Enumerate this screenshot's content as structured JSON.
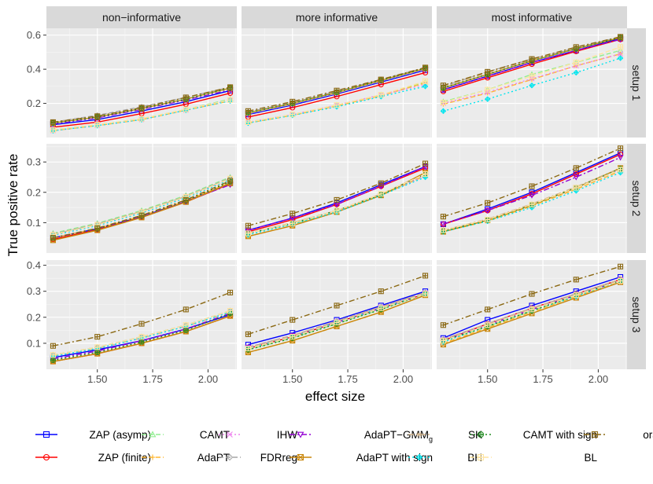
{
  "chart_data": {
    "type": "line",
    "facet_cols": [
      "non−informative",
      "more informative",
      "most informative"
    ],
    "facet_rows": [
      "setup 1",
      "setup 2",
      "setup 3"
    ],
    "xlabel": "effect size",
    "ylabel": "True positive rate",
    "x": [
      1.3,
      1.5,
      1.7,
      1.9,
      2.1
    ],
    "xlim": [
      1.27,
      2.13
    ],
    "xticks": [
      1.5,
      1.75,
      2.0
    ],
    "xtick_labels": [
      "1.50",
      "1.75",
      "2.00"
    ],
    "rows": [
      {
        "ylim": [
          0.0,
          0.64
        ],
        "yticks": [
          0.2,
          0.4,
          0.6
        ],
        "ytick_labels": [
          "0.2",
          "0.4",
          "0.6"
        ]
      },
      {
        "ylim": [
          0.0,
          0.36
        ],
        "yticks": [
          0.1,
          0.2,
          0.3
        ],
        "ytick_labels": [
          "0.1",
          "0.2",
          "0.3"
        ]
      },
      {
        "ylim": [
          0.0,
          0.42
        ],
        "yticks": [
          0.1,
          0.2,
          0.3,
          0.4
        ],
        "ytick_labels": [
          "0.1",
          "0.2",
          "0.3",
          "0.4"
        ]
      }
    ],
    "methods": [
      {
        "name": "ZAP (asymp)",
        "label": "ZAP (asymp)",
        "color": "#0000ff",
        "dash": "",
        "marker": "square"
      },
      {
        "name": "ZAP (finite)",
        "label": "ZAP (finite)",
        "color": "#ff0000",
        "dash": "",
        "marker": "circle"
      },
      {
        "name": "CAMT",
        "label": "CAMT",
        "color": "#90ee90",
        "dash": "6,3",
        "marker": "triangle"
      },
      {
        "name": "AdaPT",
        "label": "AdaPT",
        "color": "#ffb732",
        "dash": "6,3",
        "marker": "plus"
      },
      {
        "name": "IHW",
        "label": "IHW",
        "color": "#ee82ee",
        "dash": "2,3",
        "marker": "x"
      },
      {
        "name": "FDRreg",
        "label": "FDRreg",
        "color": "#a6a6a6",
        "dash": "6,3",
        "marker": "diamond"
      },
      {
        "name": "AdaPT-GMMg",
        "label": "AdaPT−GMM",
        "label_sub": "g",
        "color": "#9400d3",
        "dash": "7,3,2,3",
        "marker": "triangle-down"
      },
      {
        "name": "AdaPT with sign",
        "label": "AdaPT with sign",
        "color": "#c8860b",
        "dash": "",
        "marker": "square-x"
      },
      {
        "name": "SK",
        "label": "SK",
        "color": "#d2b48c",
        "dash": "7,3,2,3",
        "marker": "asterisk"
      },
      {
        "name": "BH",
        "label": "BH",
        "color": "#00e5ee",
        "dash": "2,3",
        "marker": "diamond-plus"
      },
      {
        "name": "CAMT with sign",
        "label": "CAMT with sign",
        "color": "#228b22",
        "dash": "2,3",
        "marker": "circle-plus"
      },
      {
        "name": "BL",
        "label": "BL",
        "color": "#ffe4a0",
        "dash": "6,3",
        "marker": "square-plus"
      },
      {
        "name": "oracle",
        "label": "oracle",
        "color": "#8b6914",
        "dash": "7,3,2,3",
        "marker": "square-plus"
      }
    ],
    "series": {
      "r0c0": {
        "ZAP (asymp)": [
          0.075,
          0.105,
          0.155,
          0.21,
          0.275
        ],
        "ZAP (finite)": [
          0.06,
          0.09,
          0.14,
          0.195,
          0.26
        ],
        "CAMT": [
          0.045,
          0.075,
          0.11,
          0.165,
          0.225
        ],
        "AdaPT": [
          0.04,
          0.07,
          0.105,
          0.16,
          0.215
        ],
        "IHW": [
          0.04,
          0.07,
          0.105,
          0.16,
          0.22
        ],
        "FDRreg": [
          0.09,
          0.13,
          0.18,
          0.235,
          0.295
        ],
        "AdaPT-GMMg": [
          0.08,
          0.115,
          0.165,
          0.22,
          0.28
        ],
        "AdaPT with sign": [
          0.085,
          0.12,
          0.17,
          0.225,
          0.29
        ],
        "SK": [
          0.085,
          0.12,
          0.17,
          0.225,
          0.285
        ],
        "BH": [
          0.04,
          0.07,
          0.105,
          0.16,
          0.215
        ],
        "CAMT with sign": [
          0.085,
          0.12,
          0.17,
          0.225,
          0.29
        ],
        "BL": [
          0.045,
          0.075,
          0.11,
          0.165,
          0.22
        ],
        "oracle": [
          0.09,
          0.125,
          0.175,
          0.235,
          0.295
        ]
      },
      "r0c1": {
        "ZAP (asymp)": [
          0.135,
          0.19,
          0.255,
          0.325,
          0.395
        ],
        "ZAP (finite)": [
          0.12,
          0.175,
          0.24,
          0.31,
          0.38
        ],
        "CAMT": [
          0.09,
          0.135,
          0.19,
          0.25,
          0.325
        ],
        "AdaPT": [
          0.085,
          0.13,
          0.185,
          0.245,
          0.32
        ],
        "IHW": [
          0.09,
          0.135,
          0.19,
          0.25,
          0.31
        ],
        "FDRreg": [
          0.15,
          0.205,
          0.27,
          0.34,
          0.41
        ],
        "AdaPT-GMMg": [
          0.14,
          0.195,
          0.26,
          0.33,
          0.4
        ],
        "AdaPT with sign": [
          0.145,
          0.2,
          0.265,
          0.335,
          0.405
        ],
        "SK": [
          0.14,
          0.195,
          0.26,
          0.33,
          0.4
        ],
        "BH": [
          0.085,
          0.13,
          0.18,
          0.24,
          0.3
        ],
        "CAMT with sign": [
          0.145,
          0.2,
          0.265,
          0.335,
          0.405
        ],
        "BL": [
          0.09,
          0.135,
          0.19,
          0.25,
          0.33
        ],
        "oracle": [
          0.155,
          0.21,
          0.275,
          0.34,
          0.41
        ]
      },
      "r0c2": {
        "ZAP (asymp)": [
          0.28,
          0.36,
          0.44,
          0.51,
          0.58
        ],
        "ZAP (finite)": [
          0.27,
          0.35,
          0.43,
          0.505,
          0.575
        ],
        "CAMT": [
          0.21,
          0.28,
          0.37,
          0.44,
          0.51
        ],
        "AdaPT": [
          0.195,
          0.26,
          0.34,
          0.42,
          0.49
        ],
        "IHW": [
          0.2,
          0.265,
          0.345,
          0.42,
          0.49
        ],
        "FDRreg": [
          0.3,
          0.385,
          0.46,
          0.525,
          0.59
        ],
        "AdaPT-GMMg": [
          0.28,
          0.36,
          0.44,
          0.51,
          0.575
        ],
        "AdaPT with sign": [
          0.29,
          0.37,
          0.45,
          0.52,
          0.585
        ],
        "SK": [
          0.295,
          0.38,
          0.455,
          0.525,
          0.59
        ],
        "BH": [
          0.155,
          0.225,
          0.305,
          0.38,
          0.465
        ],
        "CAMT with sign": [
          0.29,
          0.37,
          0.45,
          0.52,
          0.585
        ],
        "BL": [
          0.205,
          0.28,
          0.36,
          0.44,
          0.53
        ],
        "oracle": [
          0.305,
          0.385,
          0.46,
          0.53,
          0.59
        ]
      },
      "r1c0": {
        "ZAP (asymp)": [
          0.05,
          0.08,
          0.12,
          0.17,
          0.23
        ],
        "ZAP (finite)": [
          0.045,
          0.077,
          0.118,
          0.168,
          0.228
        ],
        "CAMT": [
          0.065,
          0.098,
          0.14,
          0.19,
          0.25
        ],
        "AdaPT": [
          0.05,
          0.08,
          0.122,
          0.172,
          0.232
        ],
        "IHW": [
          0.058,
          0.09,
          0.132,
          0.182,
          0.242
        ],
        "FDRreg": [
          0.062,
          0.095,
          0.137,
          0.187,
          0.247
        ],
        "AdaPT-GMMg": [
          0.05,
          0.08,
          0.12,
          0.17,
          0.225
        ],
        "AdaPT with sign": [
          0.042,
          0.075,
          0.117,
          0.168,
          0.23
        ],
        "SK": [
          0.062,
          0.095,
          0.137,
          0.187,
          0.245
        ],
        "BH": [
          0.058,
          0.09,
          0.132,
          0.182,
          0.242
        ],
        "CAMT with sign": [
          0.05,
          0.08,
          0.122,
          0.173,
          0.235
        ],
        "BL": [
          0.06,
          0.093,
          0.135,
          0.185,
          0.245
        ],
        "oracle": [
          0.05,
          0.082,
          0.124,
          0.175,
          0.238
        ]
      },
      "r1c1": {
        "ZAP (asymp)": [
          0.075,
          0.115,
          0.165,
          0.225,
          0.285
        ],
        "ZAP (finite)": [
          0.07,
          0.11,
          0.16,
          0.22,
          0.28
        ],
        "CAMT": [
          0.065,
          0.095,
          0.135,
          0.19,
          0.255
        ],
        "AdaPT": [
          0.055,
          0.09,
          0.135,
          0.19,
          0.255
        ],
        "IHW": [
          0.065,
          0.095,
          0.135,
          0.19,
          0.255
        ],
        "FDRreg": [
          0.065,
          0.1,
          0.14,
          0.195,
          0.26
        ],
        "AdaPT-GMMg": [
          0.075,
          0.115,
          0.16,
          0.22,
          0.285
        ],
        "AdaPT with sign": [
          0.055,
          0.09,
          0.135,
          0.19,
          0.265
        ],
        "SK": [
          0.065,
          0.1,
          0.14,
          0.195,
          0.26
        ],
        "BH": [
          0.06,
          0.095,
          0.135,
          0.19,
          0.25
        ],
        "CAMT with sign": [
          0.065,
          0.097,
          0.14,
          0.192,
          0.26
        ],
        "BL": [
          0.065,
          0.098,
          0.14,
          0.195,
          0.26
        ],
        "oracle": [
          0.09,
          0.13,
          0.175,
          0.23,
          0.295
        ]
      },
      "r1c2": {
        "ZAP (asymp)": [
          0.095,
          0.145,
          0.2,
          0.265,
          0.33
        ],
        "ZAP (finite)": [
          0.095,
          0.14,
          0.195,
          0.26,
          0.325
        ],
        "CAMT": [
          0.075,
          0.11,
          0.16,
          0.215,
          0.275
        ],
        "AdaPT": [
          0.07,
          0.105,
          0.155,
          0.21,
          0.27
        ],
        "IHW": [
          0.075,
          0.11,
          0.16,
          0.215,
          0.275
        ],
        "FDRreg": [
          0.075,
          0.11,
          0.16,
          0.215,
          0.275
        ],
        "AdaPT-GMMg": [
          0.095,
          0.14,
          0.19,
          0.25,
          0.315
        ],
        "AdaPT with sign": [
          0.07,
          0.108,
          0.158,
          0.215,
          0.28
        ],
        "SK": [
          0.075,
          0.112,
          0.162,
          0.218,
          0.28
        ],
        "BH": [
          0.07,
          0.105,
          0.15,
          0.205,
          0.265
        ],
        "CAMT with sign": [
          0.072,
          0.108,
          0.158,
          0.215,
          0.278
        ],
        "BL": [
          0.075,
          0.11,
          0.16,
          0.215,
          0.275
        ],
        "oracle": [
          0.12,
          0.165,
          0.22,
          0.28,
          0.345
        ]
      },
      "r2c0": {
        "ZAP (asymp)": [
          0.045,
          0.075,
          0.11,
          0.155,
          0.21
        ],
        "ZAP (finite)": [
          0.03,
          0.06,
          0.1,
          0.145,
          0.205
        ],
        "CAMT": [
          0.055,
          0.085,
          0.125,
          0.17,
          0.225
        ],
        "AdaPT": [
          0.03,
          0.06,
          0.1,
          0.145,
          0.205
        ],
        "IHW": [
          0.05,
          0.08,
          0.12,
          0.165,
          0.22
        ],
        "FDRreg": [
          0.055,
          0.085,
          0.125,
          0.17,
          0.225
        ],
        "AdaPT-GMMg": [
          0.04,
          0.07,
          0.11,
          0.155,
          0.215
        ],
        "AdaPT with sign": [
          0.03,
          0.06,
          0.1,
          0.145,
          0.205
        ],
        "SK": [
          0.05,
          0.08,
          0.12,
          0.165,
          0.22
        ],
        "BH": [
          0.05,
          0.08,
          0.12,
          0.165,
          0.22
        ],
        "CAMT with sign": [
          0.035,
          0.065,
          0.105,
          0.15,
          0.215
        ],
        "BL": [
          0.055,
          0.085,
          0.125,
          0.17,
          0.225
        ],
        "oracle": [
          0.09,
          0.125,
          0.175,
          0.23,
          0.295
        ]
      },
      "r2c1": {
        "ZAP (asymp)": [
          0.095,
          0.14,
          0.19,
          0.245,
          0.3
        ],
        "ZAP (finite)": [
          0.08,
          0.125,
          0.18,
          0.235,
          0.29
        ],
        "CAMT": [
          0.075,
          0.12,
          0.175,
          0.23,
          0.29
        ],
        "AdaPT": [
          0.065,
          0.11,
          0.165,
          0.22,
          0.285
        ],
        "IHW": [
          0.085,
          0.13,
          0.185,
          0.24,
          0.295
        ],
        "FDRreg": [
          0.085,
          0.13,
          0.185,
          0.24,
          0.295
        ],
        "AdaPT-GMMg": [
          0.085,
          0.13,
          0.18,
          0.235,
          0.29
        ],
        "AdaPT with sign": [
          0.065,
          0.11,
          0.165,
          0.22,
          0.285
        ],
        "SK": [
          0.085,
          0.13,
          0.185,
          0.24,
          0.295
        ],
        "BH": [
          0.08,
          0.125,
          0.18,
          0.235,
          0.29
        ],
        "CAMT with sign": [
          0.075,
          0.12,
          0.175,
          0.23,
          0.29
        ],
        "BL": [
          0.08,
          0.125,
          0.18,
          0.235,
          0.29
        ],
        "oracle": [
          0.135,
          0.19,
          0.245,
          0.3,
          0.36
        ]
      },
      "r2c2": {
        "ZAP (asymp)": [
          0.12,
          0.19,
          0.245,
          0.3,
          0.355
        ],
        "ZAP (finite)": [
          0.11,
          0.175,
          0.235,
          0.29,
          0.345
        ],
        "CAMT": [
          0.11,
          0.165,
          0.225,
          0.285,
          0.34
        ],
        "AdaPT": [
          0.1,
          0.16,
          0.22,
          0.28,
          0.335
        ],
        "IHW": [
          0.115,
          0.175,
          0.235,
          0.29,
          0.345
        ],
        "FDRreg": [
          0.115,
          0.175,
          0.235,
          0.29,
          0.345
        ],
        "AdaPT-GMMg": [
          0.11,
          0.17,
          0.23,
          0.285,
          0.34
        ],
        "AdaPT with sign": [
          0.095,
          0.155,
          0.215,
          0.275,
          0.335
        ],
        "SK": [
          0.115,
          0.175,
          0.235,
          0.29,
          0.345
        ],
        "BH": [
          0.105,
          0.165,
          0.225,
          0.28,
          0.34
        ],
        "CAMT with sign": [
          0.11,
          0.165,
          0.225,
          0.285,
          0.34
        ],
        "BL": [
          0.11,
          0.17,
          0.23,
          0.285,
          0.34
        ],
        "oracle": [
          0.17,
          0.23,
          0.29,
          0.345,
          0.395
        ]
      }
    }
  }
}
